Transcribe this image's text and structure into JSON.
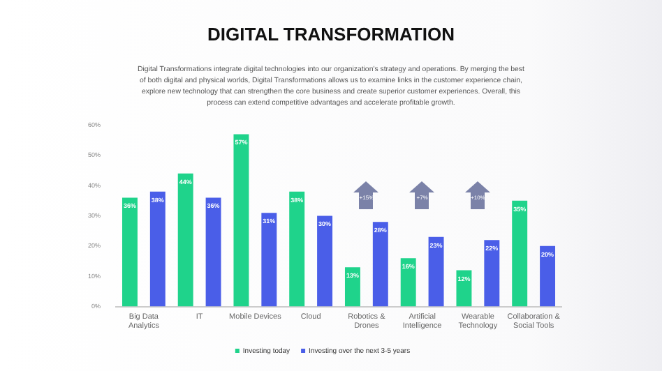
{
  "chart_data": {
    "type": "bar",
    "title": "DIGITAL TRANSFORMATION",
    "subtitle": "Digital Transformations integrate digital technologies into our organization's strategy and operations. By merging the best of both digital and physical worlds, Digital Transformations allows us to examine links in the customer experience chain, explore new technology that can strengthen the core business and create superior customer experiences. Overall, this process can extend competitive advantages and accelerate profitable growth.",
    "categories": [
      "Big Data Analytics",
      "IT",
      "Mobile Devices",
      "Cloud",
      "Robotics & Drones",
      "Artificial Intelligence",
      "Wearable Technology",
      "Collaboration & Social Tools"
    ],
    "series": [
      {
        "name": "Investing today",
        "color": "#1fd38b",
        "values": [
          36,
          44,
          57,
          38,
          13,
          16,
          12,
          35
        ],
        "value_labels": [
          "36%",
          "44%",
          "57%",
          "38%",
          "13%",
          "16%",
          "12%",
          "35%"
        ]
      },
      {
        "name": "Investing over the next 3-5 years",
        "color": "#4a5ee8",
        "values": [
          38,
          36,
          31,
          30,
          28,
          23,
          22,
          20
        ],
        "value_labels": [
          "38%",
          "36%",
          "31%",
          "30%",
          "28%",
          "23%",
          "22%",
          "20%"
        ]
      }
    ],
    "ylim": [
      0,
      60
    ],
    "yticks": [
      {
        "value": 0,
        "label": "0%"
      },
      {
        "value": 10,
        "label": "10%"
      },
      {
        "value": 20,
        "label": "20%"
      },
      {
        "value": 30,
        "label": "30%"
      },
      {
        "value": 40,
        "label": "40%"
      },
      {
        "value": 50,
        "label": "50%"
      },
      {
        "value": 60,
        "label": "60%"
      }
    ],
    "grid": false,
    "legend": "bottom",
    "annotations": [
      {
        "text": "+15%",
        "x": "Robotics & Drones",
        "y": 37
      },
      {
        "text": "+7%",
        "x": "Artificial Intelligence",
        "y": 37
      },
      {
        "text": "+10%",
        "x": "Wearable Technology",
        "y": 37
      }
    ]
  }
}
